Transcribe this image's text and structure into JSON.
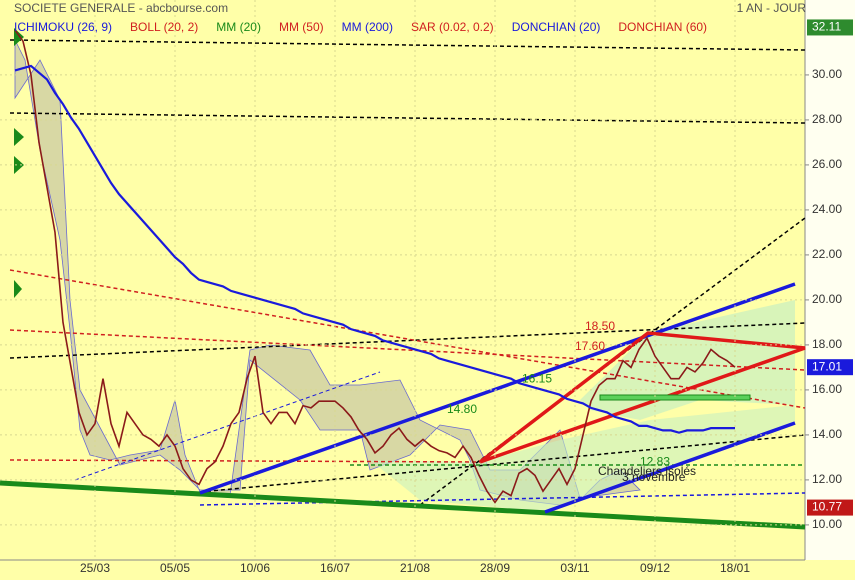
{
  "header": {
    "title": "SOCIETE GENERALE - abcbourse.com",
    "period": "1 AN - JOUR"
  },
  "indicators": [
    {
      "label": "ICHIMOKU (26, 9)",
      "color": "#1a1adc"
    },
    {
      "label": "BOLL (20, 2)",
      "color": "#d02020"
    },
    {
      "label": "MM (20)",
      "color": "#1a8a1a"
    },
    {
      "label": "MM (50)",
      "color": "#d02020"
    },
    {
      "label": "MM (200)",
      "color": "#1a1adc"
    },
    {
      "label": "SAR (0.02, 0.2)",
      "color": "#d02020"
    },
    {
      "label": "DONCHIAN (20)",
      "color": "#1a1adc"
    },
    {
      "label": "DONCHIAN (60)",
      "color": "#d02020"
    }
  ],
  "chart_data": {
    "type": "line",
    "categories": [
      null,
      null,
      null,
      null,
      null,
      null,
      null,
      null,
      null,
      null,
      "25/03",
      null,
      null,
      null,
      null,
      null,
      null,
      null,
      null,
      null,
      "05/05",
      null,
      null,
      null,
      null,
      null,
      null,
      null,
      null,
      null,
      "10/06",
      null,
      null,
      null,
      null,
      null,
      null,
      null,
      null,
      null,
      "16/07",
      null,
      null,
      null,
      null,
      null,
      null,
      null,
      null,
      null,
      "21/08",
      null,
      null,
      null,
      null,
      null,
      null,
      null,
      null,
      null,
      "28/09",
      null,
      null,
      null,
      null,
      null,
      null,
      null,
      null,
      null,
      "03/11",
      null,
      null,
      null,
      null,
      null,
      null,
      null,
      null,
      null,
      "09/12",
      null,
      null,
      null,
      null,
      null,
      null,
      null,
      null,
      null,
      "18/01"
    ],
    "series": [
      {
        "color": "#8b1a1a",
        "values": [
          32,
          31.5,
          30,
          27,
          25,
          23,
          19,
          17,
          15,
          14,
          14.5,
          16.5,
          14.5,
          13.5,
          15,
          14.5,
          14,
          13.8,
          13.5,
          14,
          13.5,
          12.5,
          12,
          11.8,
          12.5,
          12.8,
          13.5,
          14.5,
          15,
          16.5,
          17.5,
          15,
          14.5,
          15,
          15,
          14.5,
          15.3,
          15.2,
          15.5,
          15.5,
          15.5,
          15.2,
          14.8,
          14.2,
          13.8,
          13.2,
          13.5,
          14,
          14.3,
          13.8,
          13.5,
          13.8,
          13.5,
          13.3,
          13.2,
          13,
          13.5,
          13,
          12.2,
          11.5,
          11,
          11.5,
          11.3,
          12.3,
          12.5,
          12.2,
          11.5,
          12,
          12.5,
          11.8,
          12.5,
          14,
          15.5,
          16.2,
          16.5,
          16.5,
          17.3,
          17,
          17.8,
          18.3,
          17.5,
          17,
          16.5,
          16.5,
          17,
          16.8,
          17.2,
          17.8,
          17.5,
          17.3,
          17.01
        ]
      },
      {
        "color": "#1a1adc",
        "values": [
          30.2,
          30.3,
          30.4,
          30.1,
          29.8,
          29.2,
          28.7,
          28.1,
          27.6,
          27.0,
          26.4,
          25.8,
          25.2,
          24.7,
          24.3,
          23.9,
          23.5,
          23.1,
          22.7,
          22.3,
          21.9,
          21.6,
          21.2,
          20.9,
          20.8,
          20.7,
          20.6,
          20.4,
          20.3,
          20.2,
          20.1,
          20.0,
          19.9,
          19.8,
          19.7,
          19.6,
          19.4,
          19.3,
          19.2,
          19.1,
          19.0,
          18.9,
          18.7,
          18.6,
          18.5,
          18.4,
          18.2,
          18.1,
          18.0,
          17.9,
          17.8,
          17.7,
          17.6,
          17.4,
          17.3,
          17.2,
          17.1,
          17.0,
          16.9,
          16.8,
          16.7,
          16.6,
          16.5,
          16.3,
          16.2,
          16.1,
          16.0,
          15.9,
          15.8,
          15.6,
          15.5,
          15.4,
          15.2,
          15.1,
          15.0,
          14.8,
          14.7,
          14.6,
          14.4,
          14.4,
          14.3,
          14.2,
          14.2,
          14.1,
          14.2,
          14.2,
          14.2,
          14.3,
          14.3,
          14.3,
          14.3
        ]
      }
    ],
    "ylim": [
      8.44,
      33.33
    ],
    "yticks": [
      {
        "value": 10,
        "label": "10.00"
      },
      {
        "value": 12,
        "label": "12.00"
      },
      {
        "value": 14,
        "label": "14.00"
      },
      {
        "value": 16,
        "label": "16.00"
      },
      {
        "value": 18,
        "label": "18.00"
      },
      {
        "value": 20,
        "label": "20.00"
      },
      {
        "value": 22,
        "label": "22.00"
      },
      {
        "value": 24,
        "label": "24.00"
      },
      {
        "value": 26,
        "label": "26.00"
      },
      {
        "value": 28,
        "label": "28.00"
      },
      {
        "value": 30,
        "label": "30.00"
      }
    ],
    "grid": true,
    "price_tags": [
      {
        "value": 32.11,
        "label": "32.11",
        "color": "#2e8b2e"
      },
      {
        "value": 17.01,
        "label": "17.01",
        "color": "#1a1adc"
      },
      {
        "value": 10.77,
        "label": "10.77",
        "color": "#c01818"
      }
    ],
    "annotations": [
      {
        "value": 18.5,
        "label": "18.50"
      },
      {
        "value": 17.6,
        "label": "17.60"
      },
      {
        "value": 16.15,
        "label": "16.15"
      },
      {
        "value": 14.8,
        "label": "14.80"
      },
      {
        "value": 12.83,
        "label": "12.83"
      }
    ],
    "notes": [
      "Chandeliers isolés",
      "3 novembre"
    ]
  }
}
